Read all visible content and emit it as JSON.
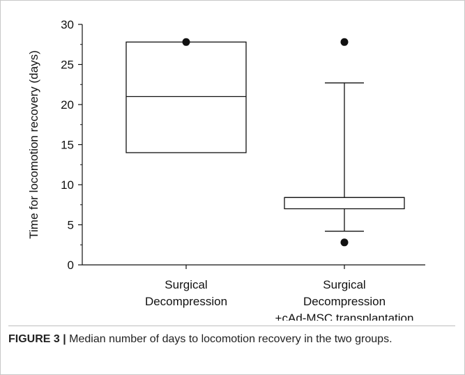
{
  "caption": {
    "label": "FIGURE 3 |",
    "text": " Median number of days to locomotion recovery in the two groups."
  },
  "chart_data": {
    "type": "box",
    "ylabel": "Time for locomotion recovery (days)",
    "xlabel": "",
    "ylim": [
      0,
      30
    ],
    "yticks": [
      0,
      5,
      10,
      15,
      20,
      25,
      30
    ],
    "grid": false,
    "groups": [
      {
        "name_lines": [
          "Surgical",
          "Decompression"
        ],
        "whisker_low": 14,
        "q1": 14,
        "median": 21,
        "q3": 27.8,
        "whisker_high": 27.8,
        "outliers": [
          27.8
        ]
      },
      {
        "name_lines": [
          "Surgical",
          "Decompression",
          "+cAd-MSC transplantation"
        ],
        "whisker_low": 4.2,
        "q1": 7,
        "median": 8.4,
        "q3": 8.4,
        "whisker_high": 22.7,
        "outliers": [
          27.8,
          2.8
        ]
      }
    ]
  }
}
